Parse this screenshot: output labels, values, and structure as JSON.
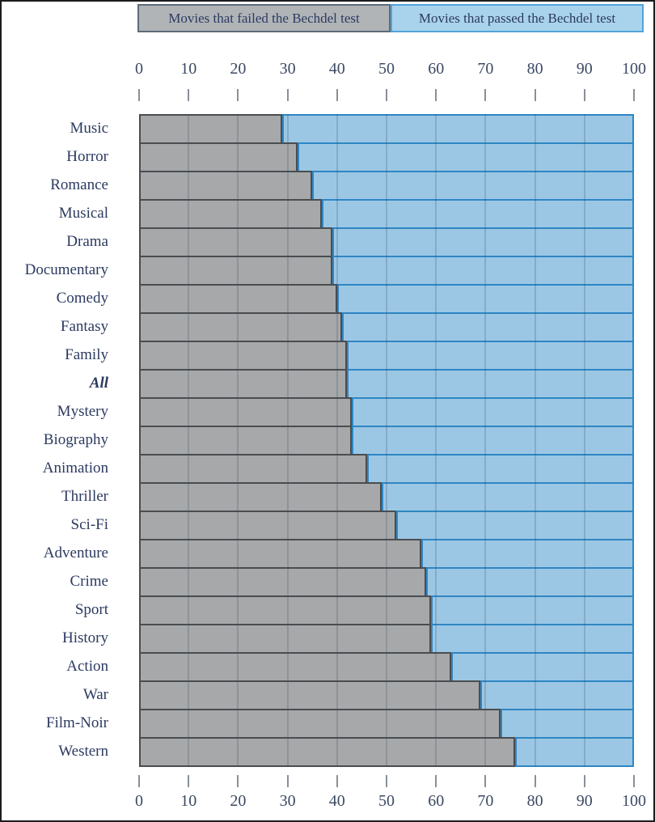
{
  "legend": {
    "fail_label": "Movies that failed the Bechdel test",
    "pass_label": "Movies that passed the Bechdel test"
  },
  "chart_data": {
    "type": "bar",
    "stacked": true,
    "orientation": "horizontal",
    "title": "",
    "xlabel": "",
    "ylabel": "",
    "xlim": [
      0,
      100
    ],
    "x_ticks": [
      0,
      10,
      20,
      30,
      40,
      50,
      60,
      70,
      80,
      90,
      100
    ],
    "grid": true,
    "axis_positions": [
      "top",
      "bottom"
    ],
    "legend_position": "top",
    "categories": [
      "Music",
      "Horror",
      "Romance",
      "Musical",
      "Drama",
      "Documentary",
      "Comedy",
      "Fantasy",
      "Family",
      "All",
      "Mystery",
      "Biography",
      "Animation",
      "Thriller",
      "Sci-Fi",
      "Adventure",
      "Crime",
      "Sport",
      "History",
      "Action",
      "War",
      "Film-Noir",
      "Western"
    ],
    "italic_category": "All",
    "series": [
      {
        "name": "Movies that failed the Bechdel test",
        "color": "#a6a8aa",
        "border_color": "#4a4d50",
        "values": [
          29,
          32,
          35,
          37,
          39,
          39,
          40,
          41,
          42,
          42,
          43,
          43,
          46,
          49,
          52,
          57,
          58,
          59,
          59,
          63,
          69,
          73,
          76
        ]
      },
      {
        "name": "Movies that passed the Bechdel test",
        "color": "#9cc7e4",
        "border_color": "#2e86c4",
        "values": [
          71,
          68,
          65,
          63,
          61,
          61,
          60,
          59,
          58,
          58,
          57,
          57,
          54,
          51,
          48,
          43,
          42,
          41,
          41,
          37,
          31,
          27,
          24
        ]
      }
    ]
  },
  "colors": {
    "frame_border": "#1c1c1c",
    "text_navy": "#2c3a60",
    "axis_text": "#3b4963",
    "tick_mark": "#8a9098",
    "legend_fail_bg": "#b0b4b7",
    "legend_fail_border": "#5c6b79",
    "legend_pass_bg": "#a9d3ec",
    "legend_pass_border": "#52a4d8",
    "gridline": "rgba(55,75,95,0.22)"
  }
}
